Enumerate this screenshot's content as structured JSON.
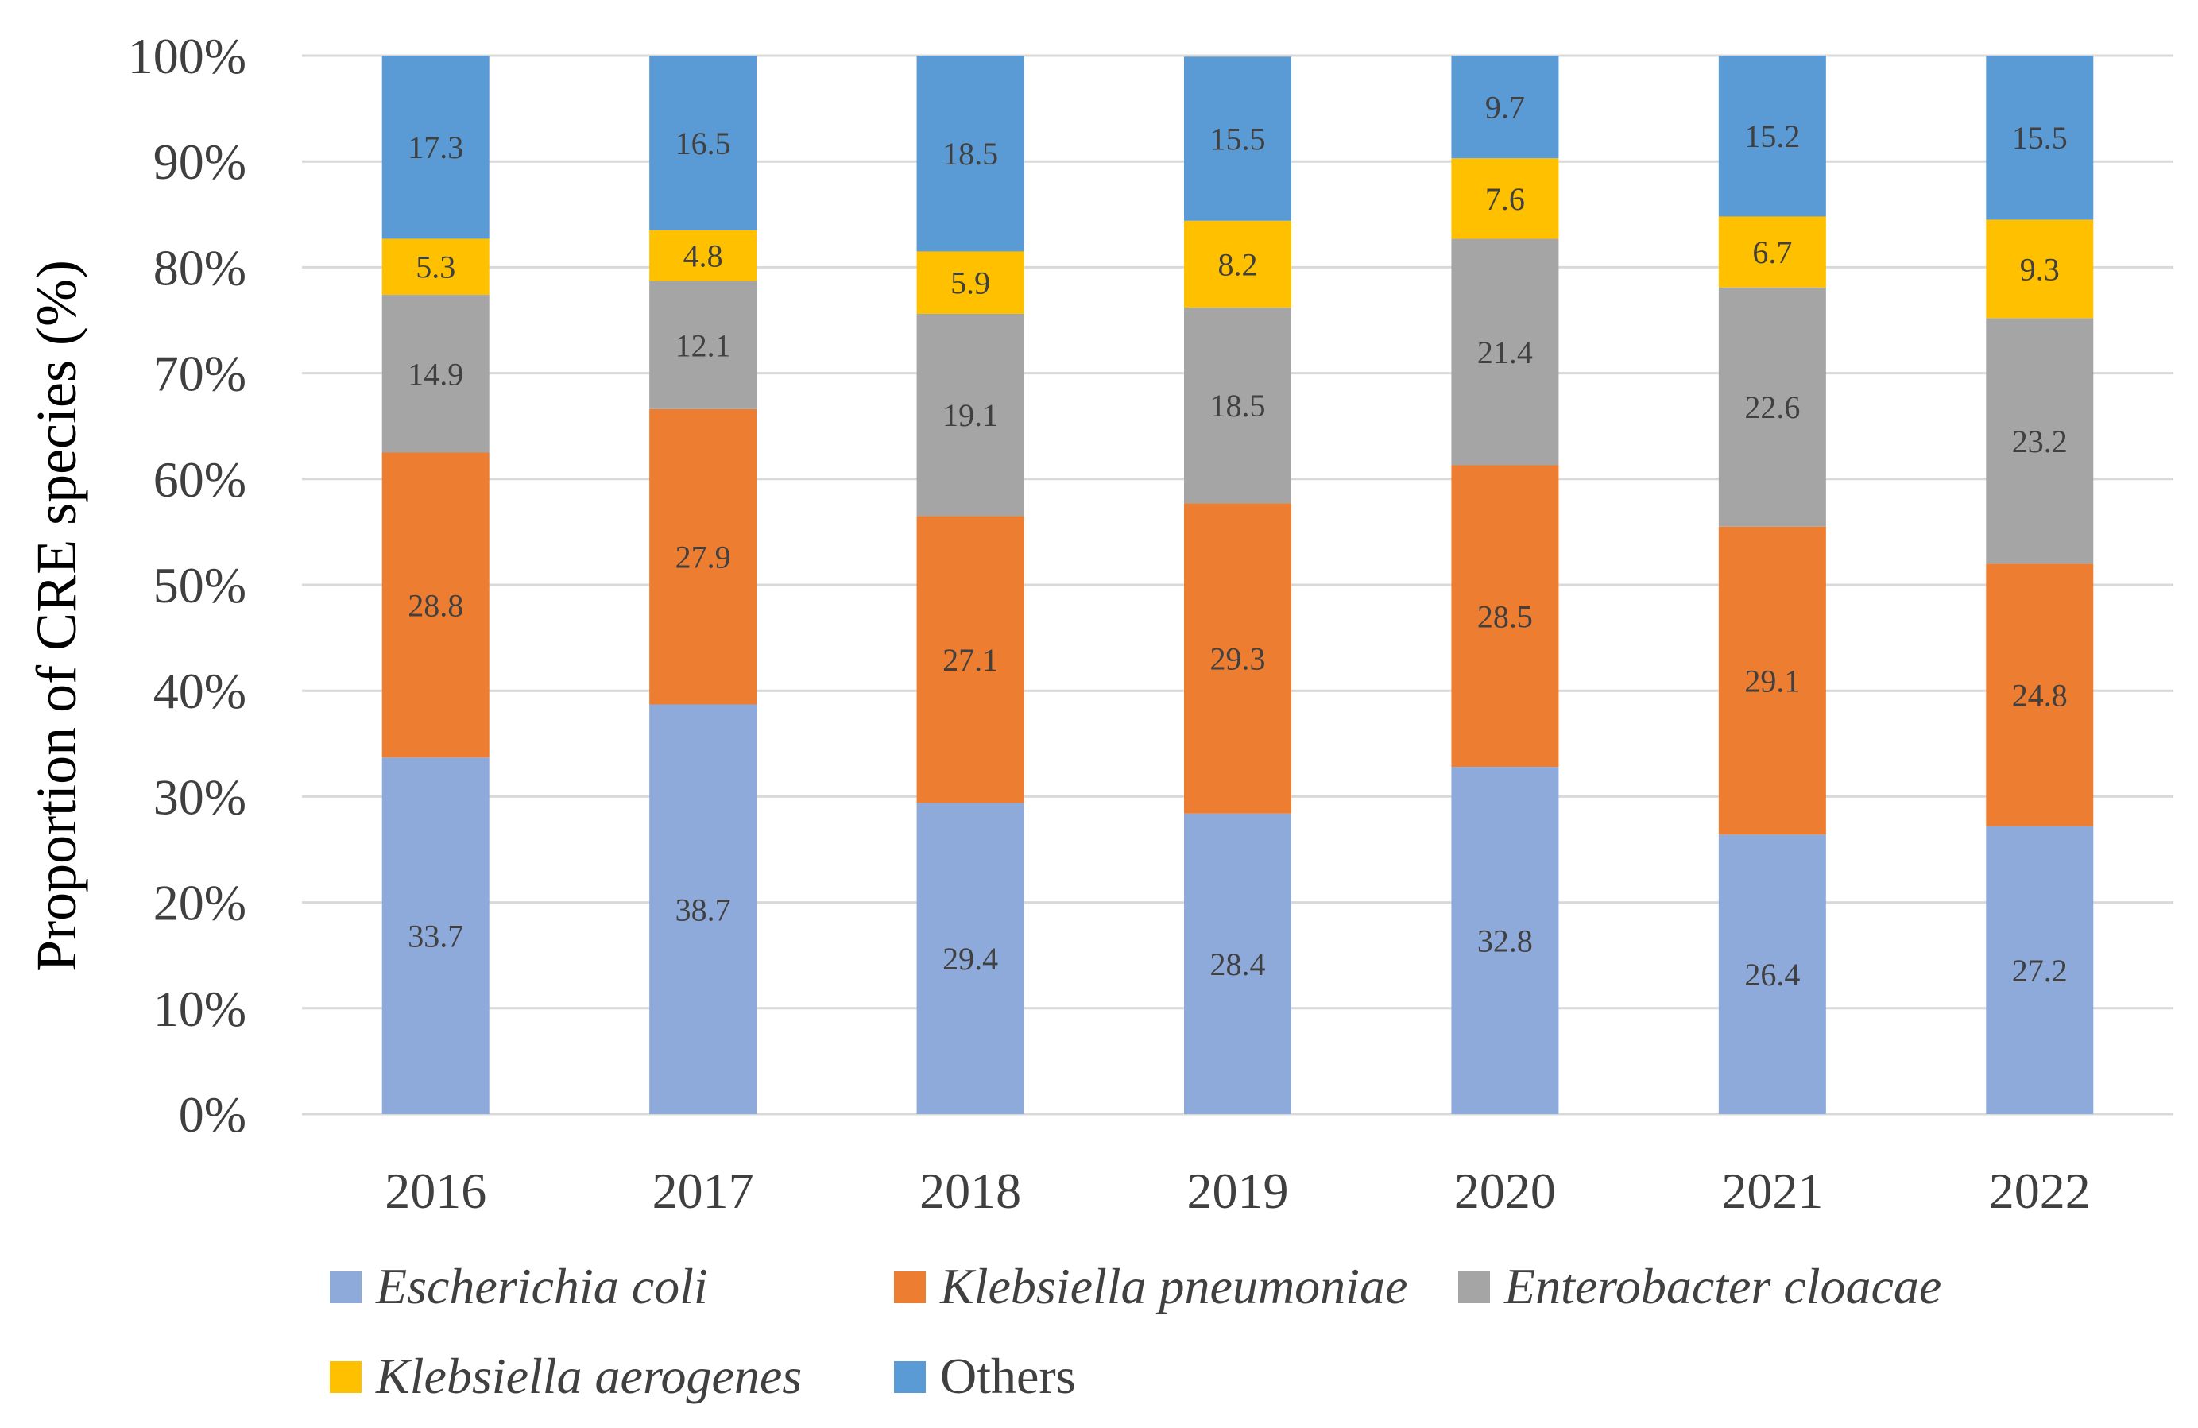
{
  "chart_data": {
    "type": "bar",
    "stacked": true,
    "categories": [
      "2016",
      "2017",
      "2018",
      "2019",
      "2020",
      "2021",
      "2022"
    ],
    "series": [
      {
        "name": "Escherichia coli",
        "italic": true,
        "color": "#8eaadb",
        "values": [
          33.7,
          38.7,
          29.4,
          28.4,
          32.8,
          26.4,
          27.2
        ]
      },
      {
        "name": "Klebsiella pneumoniae",
        "italic": true,
        "color": "#ed7d31",
        "values": [
          28.8,
          27.9,
          27.1,
          29.3,
          28.5,
          29.1,
          24.8
        ]
      },
      {
        "name": "Enterobacter cloacae",
        "italic": true,
        "color": "#a5a5a5",
        "values": [
          14.9,
          12.1,
          19.1,
          18.5,
          21.4,
          22.6,
          23.2
        ]
      },
      {
        "name": "Klebsiella aerogenes",
        "italic": true,
        "color": "#ffc000",
        "values": [
          5.3,
          4.8,
          5.9,
          8.2,
          7.6,
          6.7,
          9.3
        ]
      },
      {
        "name": "Others",
        "italic": false,
        "color": "#5b9bd5",
        "values": [
          17.3,
          16.5,
          18.5,
          15.5,
          9.7,
          15.2,
          15.5
        ]
      }
    ],
    "ylabel": "Proportion of  CRE species (%)",
    "xlabel": "",
    "ylim": [
      0,
      100
    ],
    "yticks": [
      "0%",
      "10%",
      "20%",
      "30%",
      "40%",
      "50%",
      "60%",
      "70%",
      "80%",
      "90%",
      "100%"
    ],
    "grid": true,
    "legend_position": "bottom",
    "normalized_to_100": true
  }
}
